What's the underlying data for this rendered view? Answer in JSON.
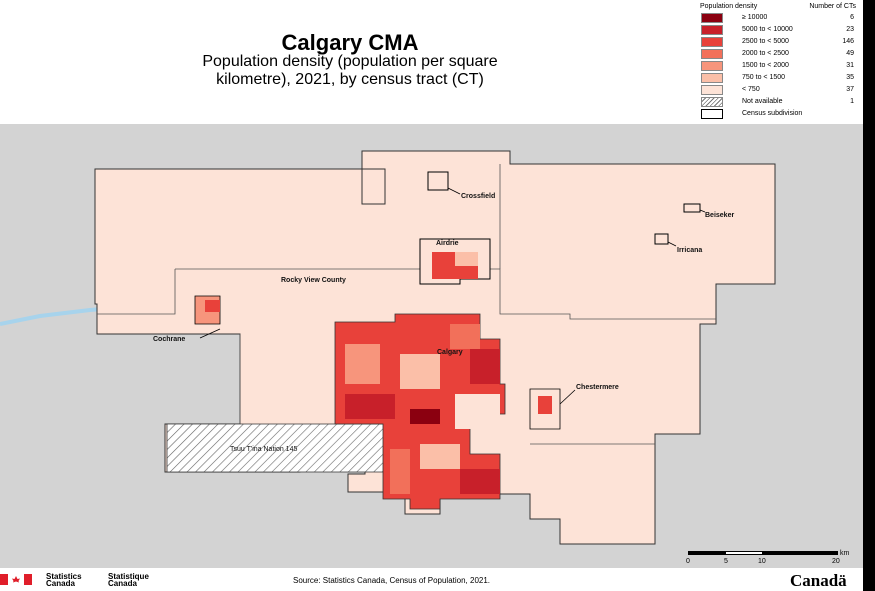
{
  "title": "Calgary CMA",
  "subtitle_line1": "Population density (population per square",
  "subtitle_line2": "kilometre), 2021, by census tract (CT)",
  "legend": {
    "density_header": "Population density",
    "count_header": "Number of CTs",
    "classes": [
      {
        "label": "≥ 10000",
        "count": "6",
        "color": "#8b0010"
      },
      {
        "label": "5000 to < 10000",
        "count": "23",
        "color": "#c8202a"
      },
      {
        "label": "2500 to < 5000",
        "count": "146",
        "color": "#e8413a"
      },
      {
        "label": "2000 to < 2500",
        "count": "49",
        "color": "#f2705a"
      },
      {
        "label": "1500 to < 2000",
        "count": "31",
        "color": "#f7957c"
      },
      {
        "label": "750 to < 1500",
        "count": "35",
        "color": "#fbbfa8"
      },
      {
        "label": "< 750",
        "count": "37",
        "color": "#fde3d7"
      },
      {
        "label": "Not available",
        "count": "1",
        "color": "hatch"
      }
    ],
    "subdivision_label": "Census subdivision"
  },
  "map_labels": {
    "crossfield": "Crossfield",
    "beiseker": "Beiseker",
    "airdrie": "Airdrie",
    "irricana": "Irricana",
    "rocky_view": "Rocky View County",
    "cochrane": "Cochrane",
    "calgary": "Calgary",
    "chestermere": "Chestermere",
    "tsuu_tina": "Tsuu T'ina Nation 145"
  },
  "scale_bar": {
    "ticks": [
      "0",
      "5",
      "10",
      "20"
    ],
    "unit": "km"
  },
  "footer": {
    "statcan_en_1": "Statistics",
    "statcan_en_2": "Canada",
    "statcan_fr_1": "Statistique",
    "statcan_fr_2": "Canada",
    "source": "Source: Statistics Canada, Census of Population, 2021.",
    "wordmark": "Canadä"
  }
}
